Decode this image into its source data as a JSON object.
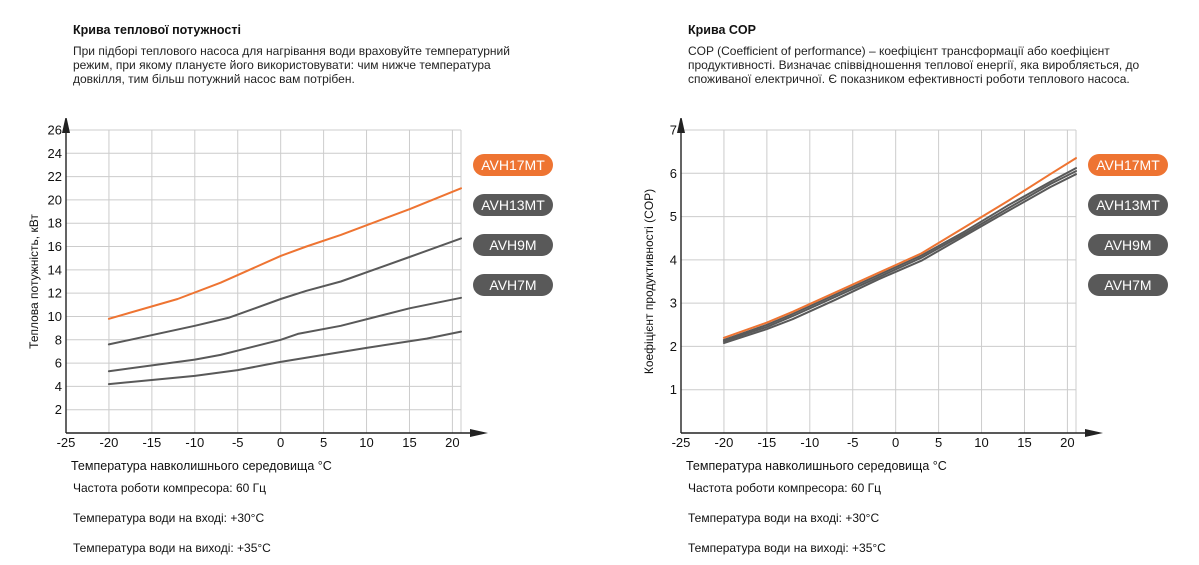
{
  "left": {
    "title": "Крива теплової потужності",
    "description": "При підборі теплового насоса для нагрівання води враховуйте температурний режим, при якому плануєте його використовувати: чим нижче температура довкілля, тим більш потужний насос вам потрібен.",
    "xlabel": "Температура навколишнього середовища °C",
    "conditions": [
      "Частота роботи компресора: 60 Гц",
      "Температура води на вході: +30°C",
      "Температура води на виході: +35°C"
    ]
  },
  "right": {
    "title": "Крива COP",
    "description": "COP (Coefficient of performance) – коефіцієнт трансформації або коефіцієнт продуктивності. Визначає співвідношення теплової енергії, яка виробляється, до споживаної електричної. Є показником ефективності роботи теплового насоса.",
    "xlabel": "Температура навколишнього середовища °C",
    "conditions": [
      "Частота роботи компресора: 60 Гц",
      "Температура води на вході: +30°C",
      "Температура води на виході: +35°C"
    ]
  },
  "colors": {
    "accent": "#ee7432",
    "series": "#595959",
    "grid": "#cccccc",
    "axis": "#222222"
  },
  "chart_data": [
    {
      "type": "line",
      "title": "Крива теплової потужності",
      "xlabel": "Температура навколишнього середовища °C",
      "ylabel": "Теплова потужність, кВт",
      "xlim": [
        -25,
        21
      ],
      "ylim": [
        0,
        26
      ],
      "xticks": [
        -25,
        -20,
        -15,
        -10,
        -5,
        0,
        5,
        10,
        15,
        20
      ],
      "yticks": [
        2,
        4,
        6,
        8,
        10,
        12,
        14,
        16,
        18,
        20,
        22,
        24,
        26
      ],
      "grid": true,
      "legend_position": "right",
      "series": [
        {
          "name": "AVH17MT",
          "color": "#ee7432",
          "x": [
            -20,
            -12,
            -7,
            0,
            3,
            7,
            15,
            21
          ],
          "y": [
            9.8,
            11.5,
            12.9,
            15.2,
            16.0,
            17.0,
            19.2,
            21.0
          ]
        },
        {
          "name": "AVH13MT",
          "color": "#595959",
          "x": [
            -20,
            -10,
            -6,
            0,
            3,
            7,
            15,
            21
          ],
          "y": [
            7.6,
            9.2,
            9.9,
            11.5,
            12.2,
            13.0,
            15.1,
            16.7
          ]
        },
        {
          "name": "AVH9M",
          "color": "#595959",
          "x": [
            -20,
            -10,
            -7,
            0,
            2,
            7,
            15,
            21
          ],
          "y": [
            5.3,
            6.3,
            6.7,
            8.0,
            8.5,
            9.2,
            10.7,
            11.6
          ]
        },
        {
          "name": "AVH7M",
          "color": "#595959",
          "x": [
            -20,
            -10,
            -5,
            0,
            5,
            10,
            17,
            21
          ],
          "y": [
            4.2,
            4.9,
            5.4,
            6.1,
            6.7,
            7.3,
            8.1,
            8.7
          ]
        }
      ]
    },
    {
      "type": "line",
      "title": "Крива COP",
      "xlabel": "Температура навколишнього середовища °C",
      "ylabel": "Коефіцієнт продуктивності (COP)",
      "xlim": [
        -25,
        21
      ],
      "ylim": [
        0,
        7
      ],
      "xticks": [
        -25,
        -20,
        -15,
        -10,
        -5,
        0,
        5,
        10,
        15,
        20
      ],
      "yticks": [
        1,
        2,
        3,
        4,
        5,
        6,
        7
      ],
      "grid": true,
      "legend_position": "right",
      "series": [
        {
          "name": "AVH17MT",
          "color": "#ee7432",
          "x": [
            -20,
            -15,
            -12,
            -7,
            -2,
            3,
            8,
            13,
            18,
            21
          ],
          "y": [
            2.2,
            2.55,
            2.8,
            3.25,
            3.7,
            4.15,
            4.75,
            5.35,
            5.98,
            6.35
          ]
        },
        {
          "name": "AVH13MT",
          "color": "#595959",
          "x": [
            -20,
            -15,
            -12,
            -7,
            -2,
            3,
            8,
            13,
            18,
            21
          ],
          "y": [
            2.15,
            2.5,
            2.75,
            3.2,
            3.65,
            4.1,
            4.65,
            5.25,
            5.8,
            6.12
          ]
        },
        {
          "name": "AVH9M",
          "color": "#595959",
          "x": [
            -20,
            -15,
            -12,
            -7,
            -2,
            3,
            8,
            13,
            18,
            21
          ],
          "y": [
            2.12,
            2.45,
            2.7,
            3.15,
            3.6,
            4.05,
            4.6,
            5.18,
            5.75,
            6.05
          ]
        },
        {
          "name": "AVH7M",
          "color": "#595959",
          "x": [
            -20,
            -15,
            -12,
            -7,
            -2,
            3,
            8,
            13,
            18,
            21
          ],
          "y": [
            2.08,
            2.4,
            2.63,
            3.08,
            3.55,
            3.98,
            4.55,
            5.12,
            5.68,
            5.98
          ]
        }
      ]
    }
  ]
}
